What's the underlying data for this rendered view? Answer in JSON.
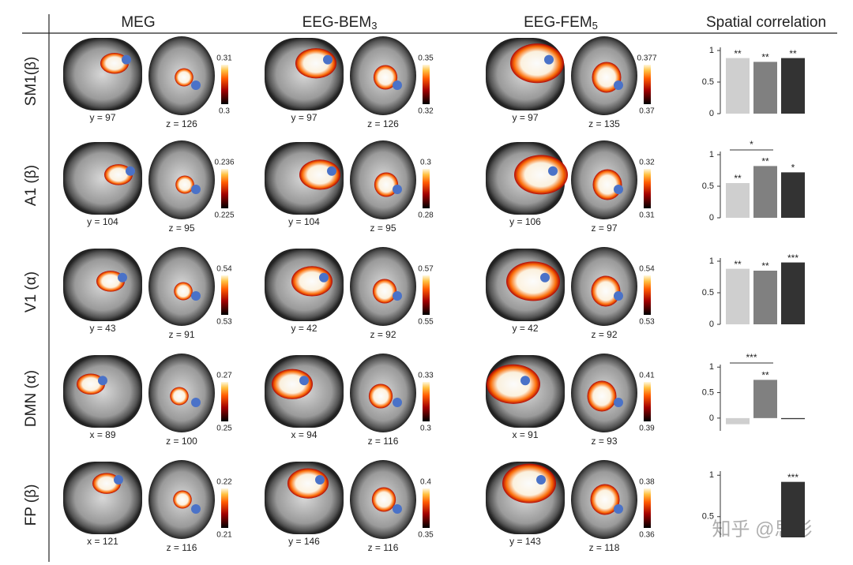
{
  "columns": [
    {
      "text": "MEG"
    },
    {
      "text": "EEG-BEM",
      "sub": "3"
    },
    {
      "text": "EEG-FEM",
      "sub": "5"
    }
  ],
  "chart_title": "Spatial correlation",
  "rows": [
    {
      "label": "SM1(β)",
      "panels": [
        {
          "slice1": "y = 97",
          "slice2": "z = 126",
          "cmax": 0.31,
          "cmin": 0.3
        },
        {
          "slice1": "y = 97",
          "slice2": "z = 126",
          "cmax": 0.35,
          "cmin": 0.32
        },
        {
          "slice1": "y = 97",
          "slice2": "z = 135",
          "cmax": 0.377,
          "cmin": 0.37
        }
      ],
      "chart_data": {
        "type": "bar",
        "values": [
          0.88,
          0.82,
          0.88
        ],
        "stars": [
          "**",
          "**",
          "**"
        ],
        "colors": [
          "#cfcfcf",
          "#808080",
          "#333333"
        ],
        "ylim": [
          0,
          1.05
        ],
        "yticks": [
          0,
          0.5,
          1
        ]
      }
    },
    {
      "label": "A1 (β)",
      "panels": [
        {
          "slice1": "y = 104",
          "slice2": "z = 95",
          "cmax": 0.236,
          "cmin": 0.225
        },
        {
          "slice1": "y = 104",
          "slice2": "z = 95",
          "cmax": 0.3,
          "cmin": 0.28
        },
        {
          "slice1": "y = 106",
          "slice2": "z = 97",
          "cmax": 0.32,
          "cmin": 0.31
        }
      ],
      "chart_data": {
        "type": "bar",
        "values": [
          0.55,
          0.82,
          0.72
        ],
        "stars": [
          "**",
          "**",
          "*"
        ],
        "bracket": "*",
        "colors": [
          "#cfcfcf",
          "#808080",
          "#333333"
        ],
        "ylim": [
          0,
          1.05
        ],
        "yticks": [
          0,
          0.5,
          1
        ]
      }
    },
    {
      "label": "V1 (α)",
      "panels": [
        {
          "slice1": "y = 43",
          "slice2": "z = 91",
          "cmax": 0.54,
          "cmin": 0.53
        },
        {
          "slice1": "y = 42",
          "slice2": "z = 92",
          "cmax": 0.57,
          "cmin": 0.55
        },
        {
          "slice1": "y = 42",
          "slice2": "z = 92",
          "cmax": 0.54,
          "cmin": 0.53
        }
      ],
      "chart_data": {
        "type": "bar",
        "values": [
          0.88,
          0.85,
          0.98
        ],
        "stars": [
          "**",
          "**",
          "***"
        ],
        "colors": [
          "#cfcfcf",
          "#808080",
          "#333333"
        ],
        "ylim": [
          0,
          1.05
        ],
        "yticks": [
          0,
          0.5,
          1
        ]
      }
    },
    {
      "label": "DMN (α)",
      "panels": [
        {
          "slice1": "x = 89",
          "slice2": "z = 100",
          "cmax": 0.27,
          "cmin": 0.25
        },
        {
          "slice1": "x = 94",
          "slice2": "z = 116",
          "cmax": 0.33,
          "cmin": 0.3
        },
        {
          "slice1": "x = 91",
          "slice2": "z = 93",
          "cmax": 0.41,
          "cmin": 0.39
        }
      ],
      "chart_data": {
        "type": "bar",
        "values": [
          -0.12,
          0.75,
          -0.02
        ],
        "stars": [
          null,
          "**",
          null
        ],
        "bracket": "***",
        "colors": [
          "#cfcfcf",
          "#808080",
          "#333333"
        ],
        "ylim": [
          -0.25,
          1.05
        ],
        "yticks": [
          0,
          0.5,
          1
        ]
      }
    },
    {
      "label": "FP (β)",
      "panels": [
        {
          "slice1": "x = 121",
          "slice2": "z = 116",
          "cmax": 0.22,
          "cmin": 0.21
        },
        {
          "slice1": "y = 146",
          "slice2": "z = 116",
          "cmax": 0.4,
          "cmin": 0.35
        },
        {
          "slice1": "y = 143",
          "slice2": "z = 118",
          "cmax": 0.38,
          "cmin": 0.36
        }
      ],
      "chart_data": {
        "type": "bar",
        "values": [
          null,
          null,
          0.92
        ],
        "stars": [
          null,
          null,
          "***"
        ],
        "colors": [
          "#cfcfcf",
          "#808080",
          "#333333"
        ],
        "ylim": [
          0.25,
          1.05
        ],
        "yticks": [
          0.5,
          1
        ]
      }
    }
  ],
  "watermark": "知乎 @思影"
}
